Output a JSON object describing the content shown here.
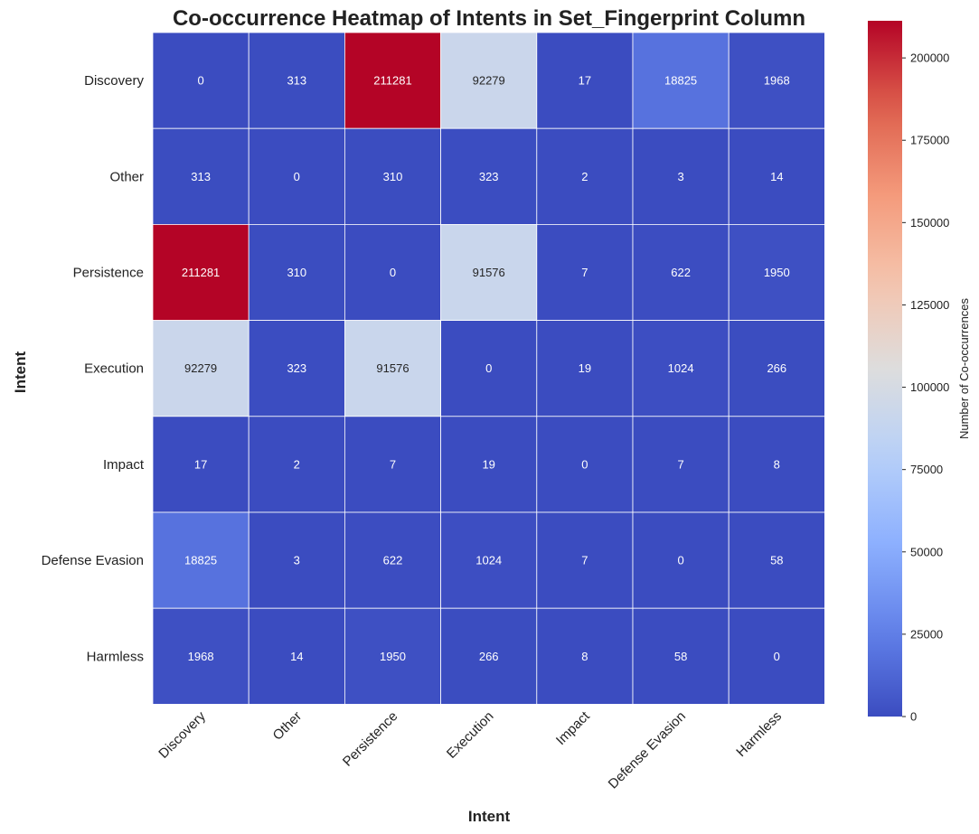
{
  "chart_data": {
    "type": "heatmap",
    "title": "Co-occurrence Heatmap of Intents in Set_Fingerprint Column",
    "xlabel": "Intent",
    "ylabel": "Intent",
    "x_categories": [
      "Discovery",
      "Other",
      "Persistence",
      "Execution",
      "Impact",
      "Defense Evasion",
      "Harmless"
    ],
    "y_categories": [
      "Discovery",
      "Other",
      "Persistence",
      "Execution",
      "Impact",
      "Defense Evasion",
      "Harmless"
    ],
    "values": [
      [
        0,
        313,
        211281,
        92279,
        17,
        18825,
        1968
      ],
      [
        313,
        0,
        310,
        323,
        2,
        3,
        14
      ],
      [
        211281,
        310,
        0,
        91576,
        7,
        622,
        1950
      ],
      [
        92279,
        323,
        91576,
        0,
        19,
        1024,
        266
      ],
      [
        17,
        2,
        7,
        19,
        0,
        7,
        8
      ],
      [
        18825,
        3,
        622,
        1024,
        7,
        0,
        58
      ],
      [
        1968,
        14,
        1950,
        266,
        8,
        58,
        0
      ]
    ],
    "colormap": "coolwarm",
    "colorbar": {
      "label": "Number of Co-occurrences",
      "range": [
        0,
        211281
      ],
      "ticks": [
        0,
        25000,
        50000,
        75000,
        100000,
        125000,
        150000,
        175000,
        200000
      ]
    },
    "annotations": true,
    "cell_border_color": "#ffffff"
  }
}
